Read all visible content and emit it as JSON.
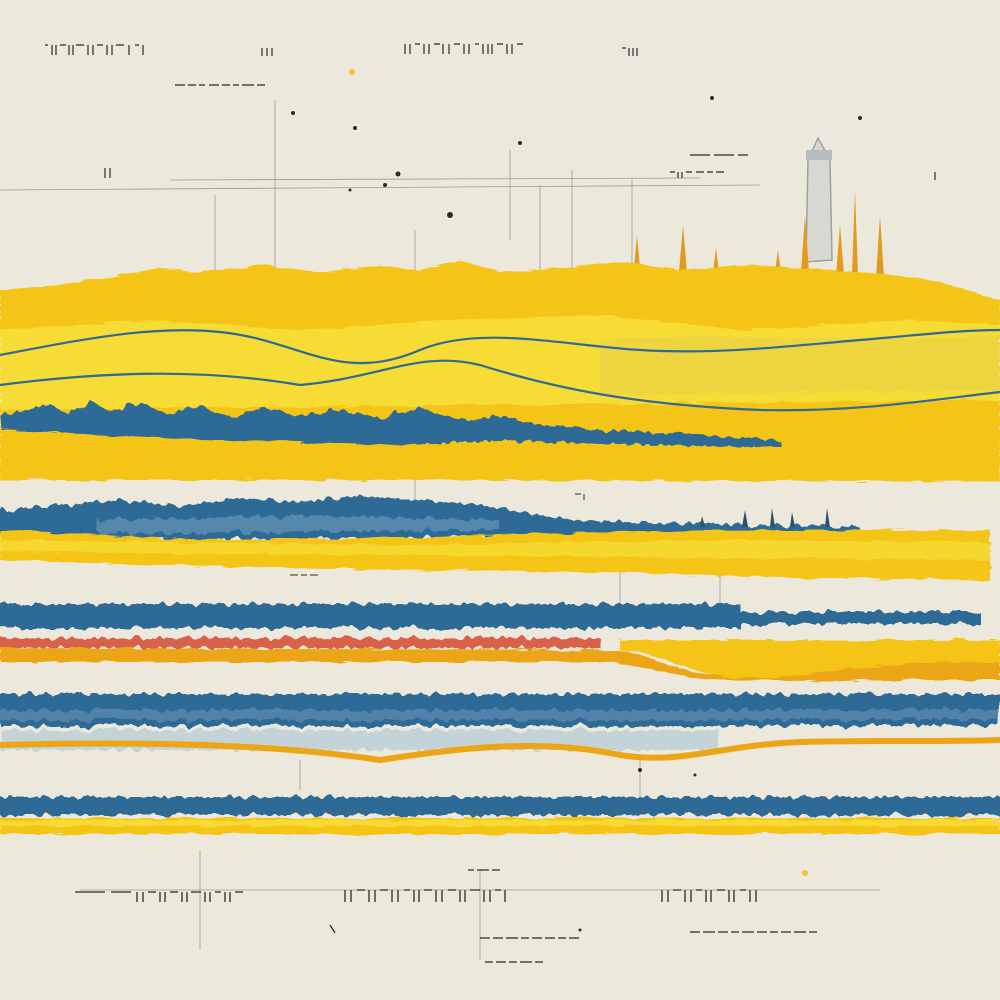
{
  "artwork": {
    "description_hidden": false,
    "palette": {
      "paper": "#ece9dc",
      "yellow": "#f4c514",
      "yellow_light": "#f7de3a",
      "orange": "#eba515",
      "blue": "#2f6a96",
      "blue_light": "#6f9cbd",
      "red": "#d9604a",
      "ink": "#2a2a2a"
    }
  }
}
